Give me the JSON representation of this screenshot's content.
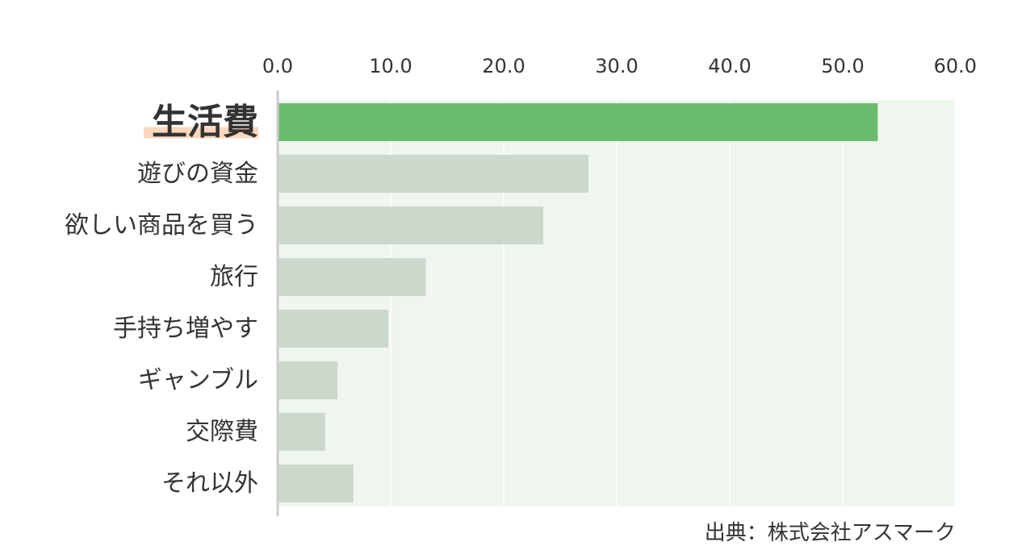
{
  "chart_data": {
    "type": "bar",
    "orientation": "horizontal",
    "categories": [
      "生活費",
      "遊びの資金",
      "欲しい商品を買う",
      "旅行",
      "手持ち増やす",
      "ギャンブル",
      "交際費",
      "それ以外"
    ],
    "values": [
      53.1,
      27.5,
      23.5,
      13.1,
      9.8,
      5.3,
      4.2,
      6.7
    ],
    "xlim": [
      0,
      60
    ],
    "xticks": [
      "0.0",
      "10.0",
      "20.0",
      "30.0",
      "40.0",
      "50.0",
      "60.0"
    ],
    "xtick_values": [
      0,
      10,
      20,
      30,
      40,
      50,
      60
    ],
    "highlight_category": "生活費",
    "grid": true,
    "colors": {
      "highlight_bar": "#6bbd6d",
      "other_bar": "#cdd8cd",
      "plot_background": "#eef6ee",
      "grid_line": "#ffffff",
      "axis_line": "#cccccc",
      "highlight_text": "#e8150e",
      "highlight_marker": "#fcd7bd",
      "text": "#333333"
    }
  },
  "source_label": "出典：株式会社アスマーク"
}
